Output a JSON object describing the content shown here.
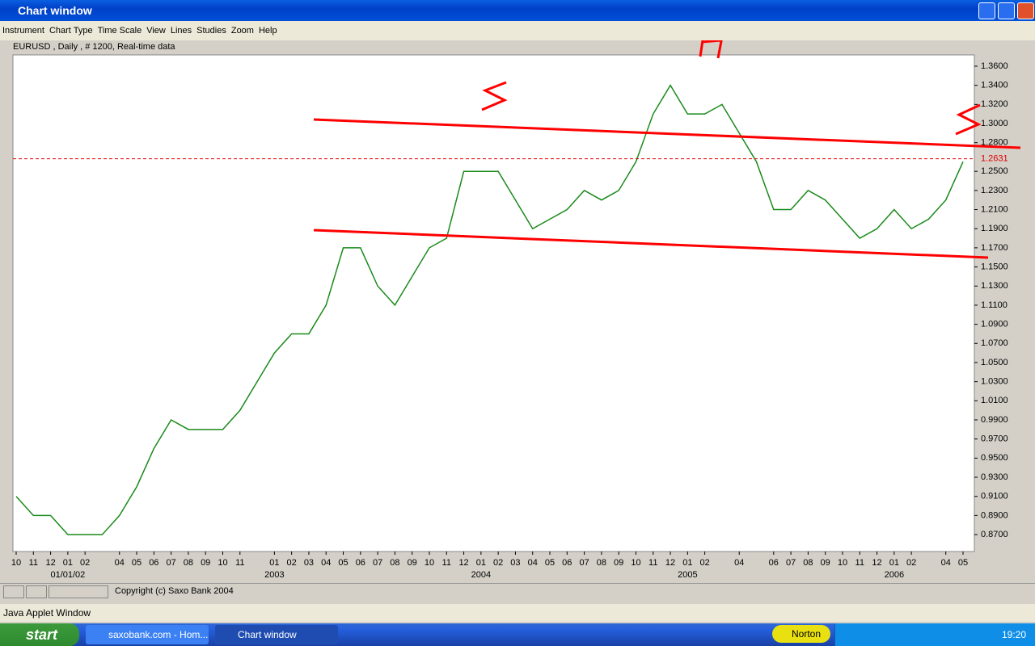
{
  "window": {
    "title": "Chart window",
    "menu": [
      "Instrument",
      "Chart Type",
      "Time Scale",
      "View",
      "Lines",
      "Studies",
      "Zoom",
      "Help"
    ],
    "chart_info": "EURUSD , Daily , # 1200, Real-time data",
    "copyright": "Copyright (c) Saxo Bank 2004",
    "status": "Java Applet Window"
  },
  "taskbar": {
    "start": "start",
    "tasks": [
      "saxobank.com - Hom...",
      "Chart window"
    ],
    "tray": "Norton",
    "clock": "19:20"
  },
  "chart_data": {
    "type": "line",
    "color": "#1a8a1a",
    "categories": [
      "10",
      "11",
      "12",
      "01",
      "02",
      null,
      "04",
      "05",
      "06",
      "07",
      "08",
      "09",
      "10",
      "11",
      null,
      "01",
      "02",
      "03",
      "04",
      "05",
      "06",
      "07",
      "08",
      "09",
      "10",
      "11",
      "12",
      "01",
      "02",
      "03",
      "04",
      "05",
      "06",
      "07",
      "08",
      "09",
      "10",
      "11",
      "12",
      "01",
      "02",
      null,
      "04",
      null,
      "06",
      "07",
      "08",
      "09",
      "10",
      "11",
      "12",
      "01",
      "02",
      null,
      "04",
      "05"
    ],
    "x_group_labels": [
      "01/01/02",
      "2003",
      "2004",
      "2005",
      "2006"
    ],
    "values": [
      0.91,
      0.89,
      0.89,
      0.87,
      0.87,
      0.87,
      0.89,
      0.92,
      0.96,
      0.99,
      0.98,
      0.98,
      0.98,
      1.0,
      1.03,
      1.06,
      1.08,
      1.08,
      1.11,
      1.17,
      1.17,
      1.13,
      1.11,
      1.14,
      1.17,
      1.18,
      1.25,
      1.25,
      1.25,
      1.22,
      1.19,
      1.2,
      1.21,
      1.23,
      1.22,
      1.23,
      1.26,
      1.31,
      1.34,
      1.31,
      1.31,
      1.32,
      1.29,
      1.26,
      1.21,
      1.21,
      1.23,
      1.22,
      1.2,
      1.18,
      1.19,
      1.21,
      1.19,
      1.2,
      1.22,
      1.26
    ],
    "last_price": 1.2631,
    "last_price_color": "#e00000",
    "ylim": [
      0.8523,
      1.3718
    ],
    "yticks": [
      {
        "value": 0.87,
        "label": "0.8700"
      },
      {
        "value": 0.89,
        "label": "0.8900"
      },
      {
        "value": 0.91,
        "label": "0.9100"
      },
      {
        "value": 0.93,
        "label": "0.9300"
      },
      {
        "value": 0.95,
        "label": "0.9500"
      },
      {
        "value": 0.97,
        "label": "0.9700"
      },
      {
        "value": 0.99,
        "label": "0.9900"
      },
      {
        "value": 1.01,
        "label": "1.0100"
      },
      {
        "value": 1.03,
        "label": "1.0300"
      },
      {
        "value": 1.05,
        "label": "1.0500"
      },
      {
        "value": 1.07,
        "label": "1.0700"
      },
      {
        "value": 1.09,
        "label": "1.0900"
      },
      {
        "value": 1.11,
        "label": "1.1100"
      },
      {
        "value": 1.13,
        "label": "1.1300"
      },
      {
        "value": 1.15,
        "label": "1.1500"
      },
      {
        "value": 1.17,
        "label": "1.1700"
      },
      {
        "value": 1.19,
        "label": "1.1900"
      },
      {
        "value": 1.21,
        "label": "1.2100"
      },
      {
        "value": 1.23,
        "label": "1.2300"
      },
      {
        "value": 1.25,
        "label": "1.2500"
      },
      {
        "value": 1.28,
        "label": "1.2800"
      },
      {
        "value": 1.3,
        "label": "1.3000"
      },
      {
        "value": 1.32,
        "label": "1.3200"
      },
      {
        "value": 1.34,
        "label": "1.3400"
      },
      {
        "value": 1.36,
        "label": "1.3600"
      }
    ],
    "grid": false
  }
}
